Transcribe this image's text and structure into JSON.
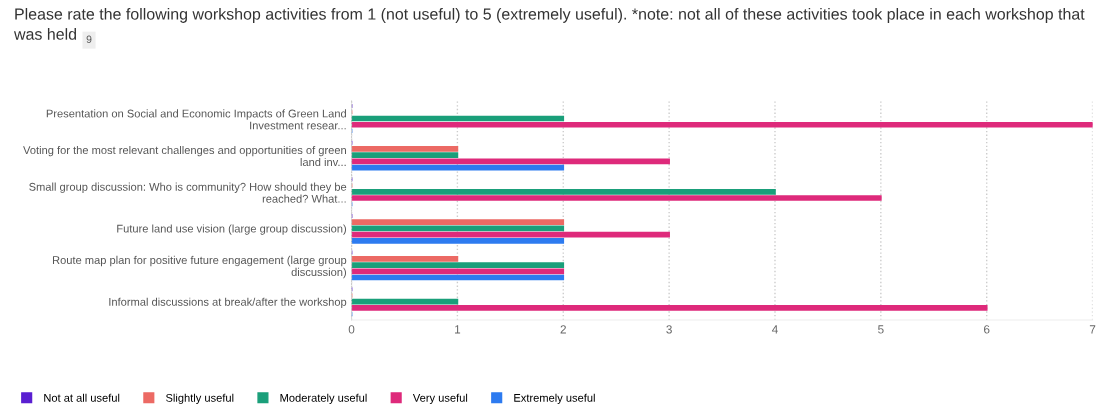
{
  "chart_data": {
    "type": "bar",
    "orientation": "horizontal",
    "title": "Please rate the following workshop activities from 1 (not useful) to 5 (extremely useful). *note: not all of these activities took place in each workshop that was held",
    "subtitle": "9",
    "categories": [
      "Presentation on Social and Economic Impacts of Green Land Investment resear...",
      "Voting for the most relevant challenges and opportunities of green land inv...",
      "Small group discussion: Who is community? How should they be reached? What...",
      "Future land use vision (large group discussion)",
      "Route map plan for positive future engagement (large group discussion)",
      "Informal discussions at break/after the workshop"
    ],
    "series": [
      {
        "name": "Not at all useful",
        "color": "#5a1fd1",
        "values": [
          0,
          0,
          0,
          0,
          0,
          0
        ]
      },
      {
        "name": "Slightly useful",
        "color": "#ec6a64",
        "values": [
          0,
          1,
          0,
          2,
          1,
          0
        ]
      },
      {
        "name": "Moderately useful",
        "color": "#1a9f7a",
        "values": [
          2,
          1,
          4,
          2,
          2,
          1
        ]
      },
      {
        "name": "Very useful",
        "color": "#de2a7b",
        "values": [
          7,
          3,
          5,
          3,
          2,
          6
        ]
      },
      {
        "name": "Extremely useful",
        "color": "#2d7bf0",
        "values": [
          0,
          2,
          0,
          2,
          2,
          0
        ]
      }
    ],
    "xlim": [
      0,
      7
    ],
    "xticks": [
      0,
      1,
      2,
      3,
      4,
      5,
      6,
      7
    ],
    "grid": "x",
    "legend": "bottom left"
  }
}
